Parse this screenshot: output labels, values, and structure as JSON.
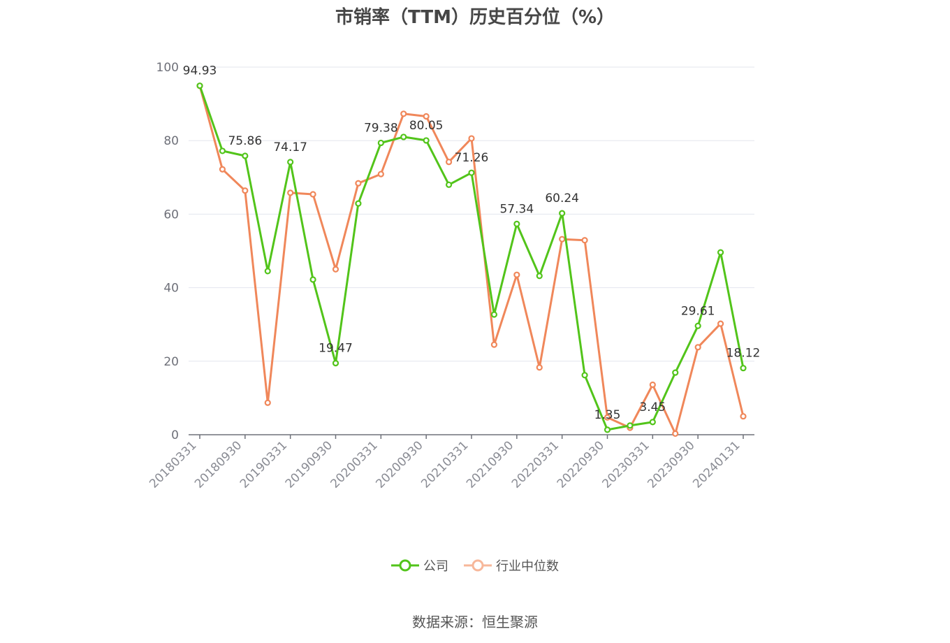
{
  "chart_data": {
    "type": "line",
    "title": "市销率（TTM）历史百分位（%）",
    "source": "数据来源：恒生聚源",
    "ylim": [
      0,
      100
    ],
    "yticks": [
      0,
      20,
      40,
      60,
      80,
      100
    ],
    "x": [
      "20180331",
      "20180630",
      "20180930",
      "20181231",
      "20190331",
      "20190630",
      "20190930",
      "20191231",
      "20200331",
      "20200630",
      "20200930",
      "20201231",
      "20210331",
      "20210630",
      "20210930",
      "20211231",
      "20220331",
      "20220630",
      "20220930",
      "20221231",
      "20230331",
      "20230630",
      "20230930",
      "20231231",
      "20240131"
    ],
    "xticks": [
      "20180331",
      "20180930",
      "20190331",
      "20190930",
      "20200331",
      "20200930",
      "20210331",
      "20210930",
      "20220331",
      "20220930",
      "20230331",
      "20230930",
      "20240131"
    ],
    "series": [
      {
        "name": "公司",
        "color": "#52c41a",
        "values": [
          94.93,
          77.2,
          75.86,
          44.5,
          74.17,
          42.2,
          19.47,
          62.9,
          79.38,
          81.0,
          80.05,
          68.0,
          71.26,
          32.7,
          57.34,
          43.2,
          60.24,
          16.2,
          1.35,
          2.5,
          3.45,
          16.9,
          29.61,
          49.6,
          18.12
        ]
      },
      {
        "name": "行业中位数",
        "color": "#f0875a",
        "values": [
          94.9,
          72.2,
          66.4,
          8.7,
          65.8,
          65.4,
          45.0,
          68.4,
          70.9,
          87.3,
          86.6,
          74.2,
          80.6,
          24.5,
          43.5,
          18.3,
          53.2,
          52.9,
          4.7,
          1.9,
          13.6,
          0.3,
          23.8,
          30.2,
          5.0
        ]
      }
    ],
    "labels": [
      {
        "index": 0,
        "text": "94.93"
      },
      {
        "index": 2,
        "text": "75.86"
      },
      {
        "index": 4,
        "text": "74.17"
      },
      {
        "index": 6,
        "text": "19.47"
      },
      {
        "index": 8,
        "text": "79.38"
      },
      {
        "index": 10,
        "text": "80.05"
      },
      {
        "index": 12,
        "text": "71.26"
      },
      {
        "index": 14,
        "text": "57.34"
      },
      {
        "index": 16,
        "text": "60.24"
      },
      {
        "index": 18,
        "text": "1.35"
      },
      {
        "index": 20,
        "text": "3.45"
      },
      {
        "index": 22,
        "text": "29.61"
      },
      {
        "index": 24,
        "text": "18.12"
      }
    ],
    "legend_position": "bottom"
  }
}
